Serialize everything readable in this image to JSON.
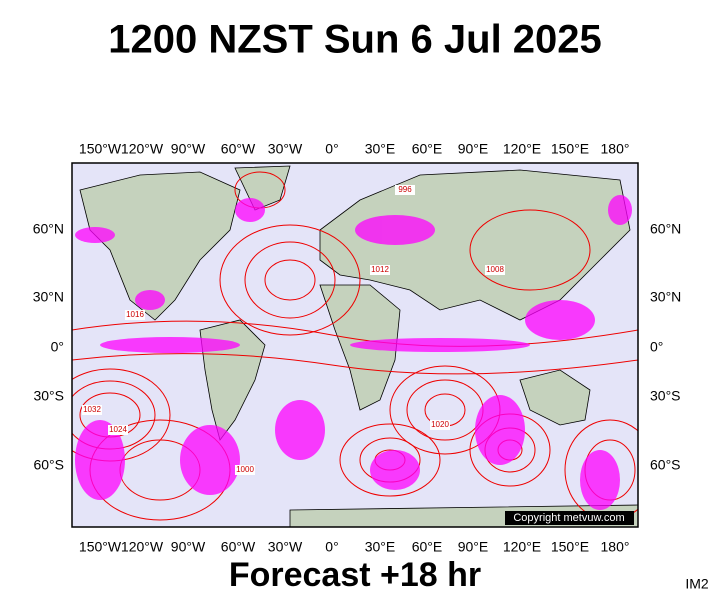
{
  "map": {
    "title": "1200 NZST Sun 6 Jul 2025",
    "lon_labels": [
      "150°W",
      "120°W",
      "90°W",
      "60°W",
      "30°W",
      "0°",
      "30°E",
      "60°E",
      "90°E",
      "120°E",
      "150°E",
      "180°"
    ],
    "lat_labels": [
      "60°N",
      "30°N",
      "0°",
      "30°S",
      "60°S"
    ],
    "isobar_labels": [
      "1016",
      "1024",
      "1000",
      "996",
      "1008",
      "1020",
      "1012",
      "1032"
    ],
    "copyright": "Copyright metvuw.com",
    "footer": "Forecast +18 hr",
    "corner_label": "IM2"
  }
}
